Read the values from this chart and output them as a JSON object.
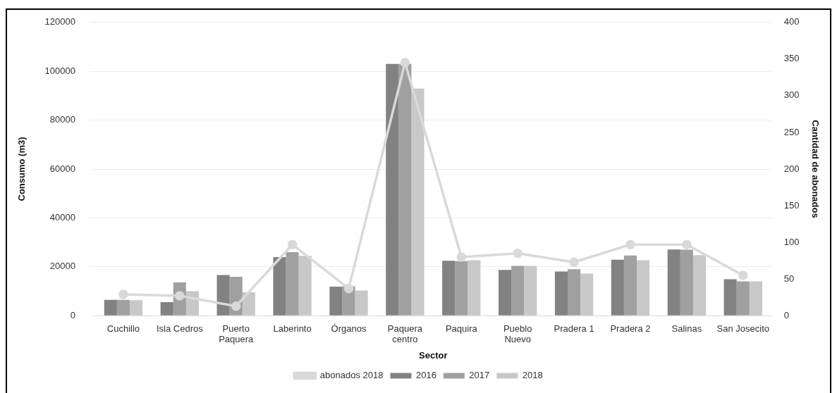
{
  "chart_data": {
    "type": "bar",
    "xlabel": "Sector",
    "ylabel": "Consumo (m3)",
    "y2label": "Cantidad de abonados",
    "categories": [
      "Cuchillo",
      "Isla Cedros",
      "Puerto Paquera",
      "Laberinto",
      "Órganos",
      "Paquera centro",
      "Paquira",
      "Pueblo Nuevo",
      "Pradera 1",
      "Pradera 2",
      "Salinas",
      "San Josecito"
    ],
    "series": [
      {
        "name": "2016",
        "color": "#828282",
        "values": [
          6500,
          5500,
          16600,
          24000,
          11900,
          103000,
          22500,
          18700,
          18100,
          22900,
          27100,
          14900
        ]
      },
      {
        "name": "2017",
        "color": "#a0a0a0",
        "values": [
          6500,
          13600,
          15900,
          26000,
          12000,
          103000,
          22300,
          20400,
          19000,
          24600,
          27000,
          14000
        ]
      },
      {
        "name": "2018",
        "color": "#c8c8c8",
        "values": [
          6300,
          10000,
          9600,
          24500,
          10300,
          92900,
          22700,
          20400,
          17200,
          22700,
          24800,
          14000
        ]
      },
      {
        "name": "abonados 2018",
        "type": "line",
        "axis": "y2",
        "color": "#d9d9d9",
        "values": [
          29,
          27,
          13,
          97,
          37,
          345,
          80,
          85,
          73,
          97,
          97,
          55
        ]
      }
    ],
    "ylim": [
      0,
      120000
    ],
    "yticks": [
      0,
      20000,
      40000,
      60000,
      80000,
      100000,
      120000
    ],
    "y2lim": [
      0,
      400
    ],
    "y2ticks": [
      0,
      50,
      100,
      150,
      200,
      250,
      300,
      350,
      400
    ],
    "grid": "y",
    "legend": "bottom",
    "marker": "circle",
    "line_style": "solid"
  }
}
